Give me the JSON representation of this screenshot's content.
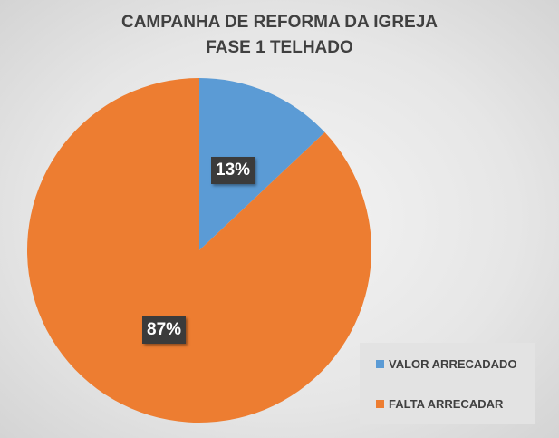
{
  "chart_data": {
    "type": "pie",
    "title": [
      "CAMPANHA DE REFORMA DA IGREJA",
      "FASE 1 TELHADO"
    ],
    "categories": [
      "VALOR ARRECADADO",
      "FALTA ARRECADAR"
    ],
    "values": [
      13,
      87
    ],
    "data_labels": [
      "13%",
      "87%"
    ],
    "colors": [
      "#5b9bd5",
      "#ed7d31"
    ],
    "legend_placement": "bottom-right"
  }
}
